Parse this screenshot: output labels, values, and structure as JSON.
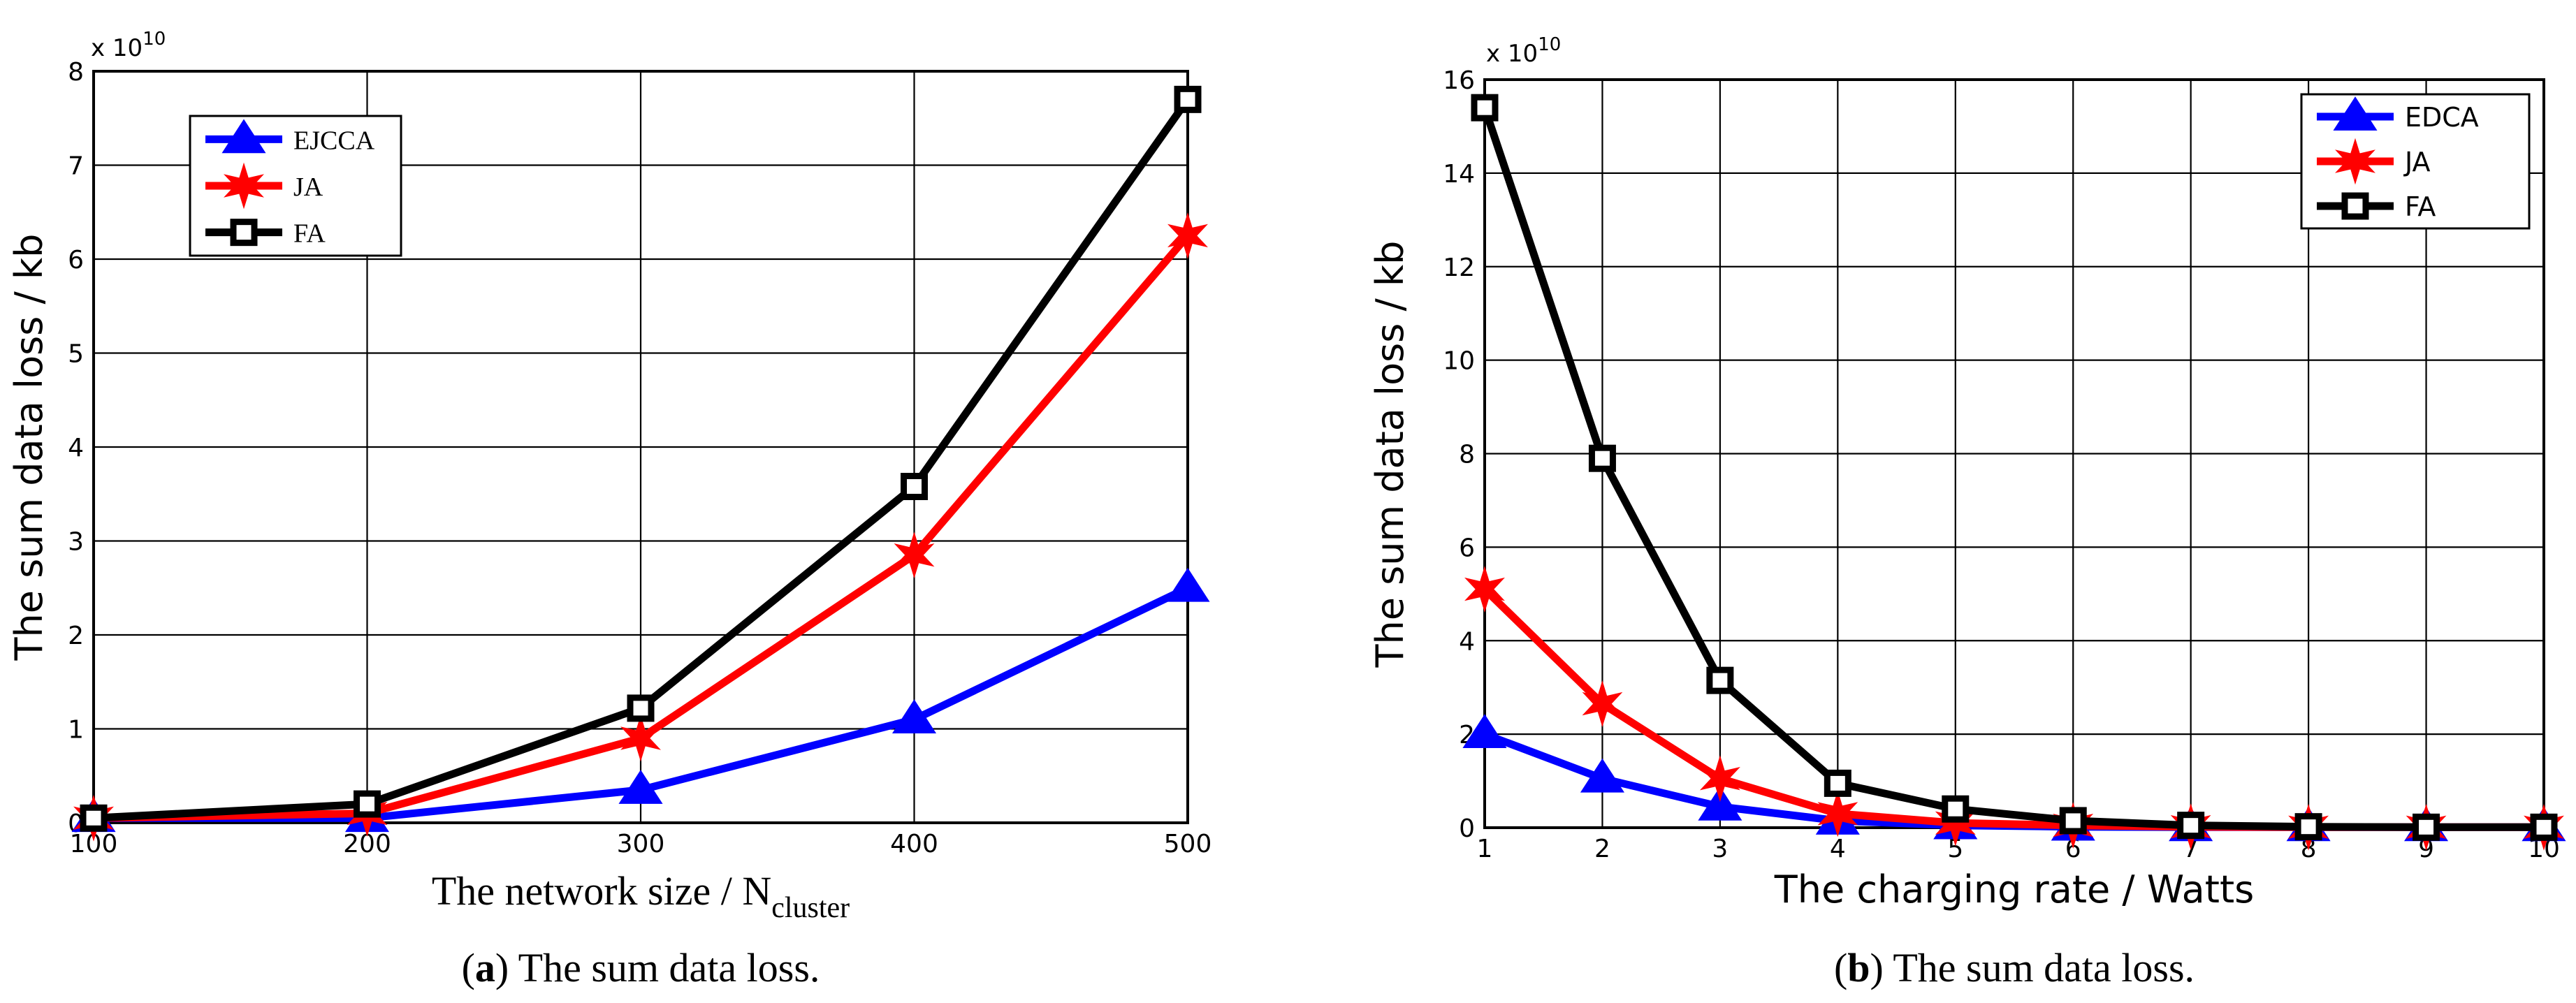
{
  "chart_data": [
    {
      "type": "line",
      "id": "a",
      "caption_letter": "a",
      "caption_text": " The sum data loss.",
      "xlabel_main": "The network size / N",
      "xlabel_sub": "cluster",
      "ylabel": "The sum data loss / kb",
      "y_exponent_base": "x 10",
      "y_exponent_power": "10",
      "x": [
        100,
        200,
        300,
        400,
        500
      ],
      "xlim": [
        100,
        500
      ],
      "ylim": [
        0,
        8
      ],
      "xticks": [
        "100",
        "200",
        "300",
        "400",
        "500"
      ],
      "yticks": [
        "0",
        "1",
        "2",
        "3",
        "4",
        "5",
        "6",
        "7",
        "8"
      ],
      "grid": true,
      "legend_position": "top-left",
      "series": [
        {
          "name": "EJCCA",
          "color": "#0000ff",
          "marker": "triangle",
          "values": [
            0.05,
            0.05,
            0.35,
            1.1,
            2.5
          ]
        },
        {
          "name": "JA",
          "color": "#ff0000",
          "marker": "star",
          "values": [
            0.05,
            0.1,
            0.9,
            2.85,
            6.25
          ]
        },
        {
          "name": "FA",
          "color": "#000000",
          "marker": "square",
          "values": [
            0.05,
            0.2,
            1.22,
            3.58,
            7.7
          ]
        }
      ]
    },
    {
      "type": "line",
      "id": "b",
      "caption_letter": "b",
      "caption_text": " The sum data loss.",
      "xlabel_main": "The charging rate / Watts",
      "xlabel_sub": "",
      "ylabel": "The sum data loss / kb",
      "y_exponent_base": "x 10",
      "y_exponent_power": "10",
      "x": [
        1,
        2,
        3,
        4,
        5,
        6,
        7,
        8,
        9,
        10
      ],
      "xlim": [
        1,
        10
      ],
      "ylim": [
        0,
        16
      ],
      "xticks": [
        "1",
        "2",
        "3",
        "4",
        "5",
        "6",
        "7",
        "8",
        "9",
        "10"
      ],
      "yticks": [
        "0",
        "2",
        "4",
        "6",
        "8",
        "10",
        "12",
        "14",
        "16"
      ],
      "grid": true,
      "legend_position": "top-right",
      "series": [
        {
          "name": "EDCA",
          "color": "#0000ff",
          "marker": "triangle",
          "values": [
            2.0,
            1.05,
            0.45,
            0.15,
            0.05,
            0.02,
            0.01,
            0.01,
            0.01,
            0.01
          ]
        },
        {
          "name": "JA",
          "color": "#ff0000",
          "marker": "star",
          "values": [
            5.1,
            2.65,
            1.05,
            0.3,
            0.1,
            0.05,
            0.02,
            0.01,
            0.01,
            0.01
          ]
        },
        {
          "name": "FA",
          "color": "#000000",
          "marker": "square",
          "values": [
            15.4,
            7.9,
            3.15,
            0.95,
            0.4,
            0.15,
            0.05,
            0.02,
            0.01,
            0.01
          ]
        }
      ]
    }
  ]
}
